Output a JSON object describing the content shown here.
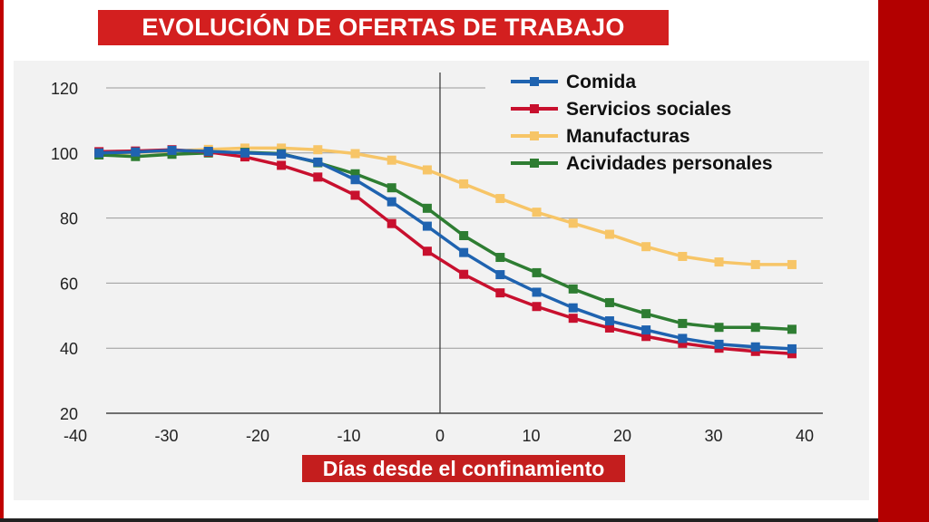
{
  "chart_data": {
    "type": "line",
    "title": "EVOLUCIÓN DE OFERTAS DE TRABAJO",
    "xlabel": "Días desde el confinamiento",
    "ylabel": "",
    "xlim": [
      -40,
      40
    ],
    "ylim": [
      20,
      120
    ],
    "xticks": [
      -40,
      -30,
      -20,
      -10,
      0,
      10,
      20,
      30,
      40
    ],
    "yticks": [
      20,
      40,
      60,
      80,
      100,
      120
    ],
    "x_tick_labels": [
      "-40",
      "-30",
      "-20",
      "-10",
      "0",
      "10",
      "20",
      "30",
      "40"
    ],
    "y_tick_labels": [
      "20",
      "40",
      "60",
      "80",
      "100",
      "120"
    ],
    "vertical_reference_line": 0,
    "legend_position": "top-right",
    "x": [
      -37.4,
      -33.4,
      -29.4,
      -25.4,
      -21.4,
      -17.4,
      -13.4,
      -9.3,
      -5.3,
      -1.4,
      2.6,
      6.6,
      10.6,
      14.6,
      18.6,
      22.6,
      26.6,
      30.6,
      34.6,
      38.6
    ],
    "series": [
      {
        "name": "Comida",
        "color": "#1f63b0",
        "values": [
          100,
          100.3,
          100.8,
          100.5,
          100,
          99.6,
          97.2,
          91.8,
          85,
          77.5,
          69.4,
          62.6,
          57.2,
          52.4,
          48.4,
          45.6,
          43,
          41.2,
          40.4,
          39.8
        ]
      },
      {
        "name": "Servicios sociales",
        "color": "#c8102e",
        "values": [
          100.4,
          100.6,
          101,
          100.3,
          98.8,
          96.2,
          92.6,
          87,
          78.3,
          69.8,
          62.7,
          57,
          52.8,
          49.2,
          46.2,
          43.6,
          41.5,
          40,
          39,
          38.3
        ]
      },
      {
        "name": "Manufacturas",
        "color": "#f7c567",
        "values": [
          99.6,
          100.2,
          100.6,
          101.1,
          101.5,
          101.5,
          101,
          99.8,
          97.8,
          94.8,
          90.5,
          86,
          81.8,
          78.4,
          75,
          71.2,
          68.2,
          66.5,
          65.7,
          65.7
        ]
      },
      {
        "name": "Acividades personales",
        "color": "#2e7d32",
        "values": [
          99.4,
          98.9,
          99.6,
          100,
          100.2,
          99.8,
          97,
          93.6,
          89.3,
          83,
          74.6,
          67.9,
          63.2,
          58.2,
          54,
          50.6,
          47.6,
          46.4,
          46.4,
          45.8
        ]
      }
    ]
  }
}
